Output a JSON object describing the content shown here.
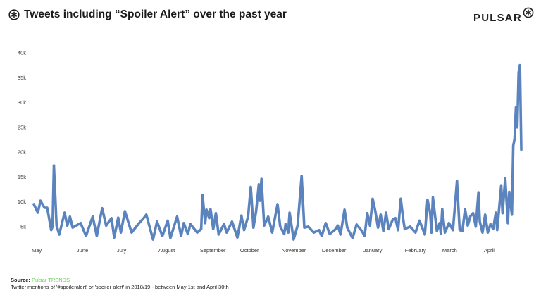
{
  "header": {
    "title": "Tweets including “Spoiler Alert” over the past year",
    "icon": "pulsar-asterisk-circle-icon"
  },
  "logo": {
    "text": "PULSAR",
    "icon": "pulsar-asterisk-circle-icon"
  },
  "footer": {
    "source_label": "Source:",
    "source_value": "Pulsar TRENDS",
    "note": "Twitter mentions of '#spoileralert' or 'spoiler alert' in 2018/19 - between May 1st and April 30th"
  },
  "colors": {
    "line": "#5b84be",
    "source": "#62d24f"
  },
  "chart_data": {
    "type": "line",
    "title": "Tweets including “Spoiler Alert” over the past year",
    "xlabel": "",
    "ylabel": "",
    "xlim": [
      "2018-05-01",
      "2019-04-30"
    ],
    "ylim": [
      0,
      40000
    ],
    "grid": false,
    "y_ticks": [
      {
        "value": 5000,
        "label": "5k"
      },
      {
        "value": 10000,
        "label": "10k"
      },
      {
        "value": 15000,
        "label": "15k"
      },
      {
        "value": 20000,
        "label": "20k"
      },
      {
        "value": 25000,
        "label": "25k"
      },
      {
        "value": 30000,
        "label": "30k"
      },
      {
        "value": 35000,
        "label": "35k"
      },
      {
        "value": 40000,
        "label": "40k"
      }
    ],
    "x_ticks": [
      {
        "date": "2018-05-01",
        "label": "May"
      },
      {
        "date": "2018-06-01",
        "label": "June"
      },
      {
        "date": "2018-07-01",
        "label": "July"
      },
      {
        "date": "2018-08-01",
        "label": "August"
      },
      {
        "date": "2018-09-01",
        "label": "September"
      },
      {
        "date": "2018-10-01",
        "label": "October"
      },
      {
        "date": "2018-11-01",
        "label": "November"
      },
      {
        "date": "2018-12-01",
        "label": "December"
      },
      {
        "date": "2019-01-01",
        "label": "January"
      },
      {
        "date": "2019-02-01",
        "label": "February"
      },
      {
        "date": "2019-03-01",
        "label": "March"
      },
      {
        "date": "2019-04-01",
        "label": "April"
      }
    ],
    "series": [
      {
        "points": [
          [
            "2018-05-01",
            9500
          ],
          [
            "2018-05-04",
            7800
          ],
          [
            "2018-05-06",
            10200
          ],
          [
            "2018-05-09",
            8800
          ],
          [
            "2018-05-11",
            8800
          ],
          [
            "2018-05-14",
            4300
          ],
          [
            "2018-05-15",
            5000
          ],
          [
            "2018-05-16",
            17300
          ],
          [
            "2018-05-18",
            5200
          ],
          [
            "2018-05-20",
            3400
          ],
          [
            "2018-05-24",
            7800
          ],
          [
            "2018-05-26",
            5200
          ],
          [
            "2018-05-28",
            7000
          ],
          [
            "2018-05-30",
            4800
          ],
          [
            "2018-06-05",
            5700
          ],
          [
            "2018-06-09",
            3100
          ],
          [
            "2018-06-14",
            7000
          ],
          [
            "2018-06-17",
            3100
          ],
          [
            "2018-06-21",
            8700
          ],
          [
            "2018-06-24",
            5200
          ],
          [
            "2018-06-28",
            6700
          ],
          [
            "2018-06-30",
            2800
          ],
          [
            "2018-07-03",
            6800
          ],
          [
            "2018-07-05",
            3800
          ],
          [
            "2018-07-08",
            8100
          ],
          [
            "2018-07-13",
            3800
          ],
          [
            "2018-07-18",
            5500
          ],
          [
            "2018-07-22",
            6700
          ],
          [
            "2018-07-24",
            7400
          ],
          [
            "2018-07-28",
            3400
          ],
          [
            "2018-07-29",
            2400
          ],
          [
            "2018-08-01",
            6000
          ],
          [
            "2018-08-05",
            3100
          ],
          [
            "2018-08-09",
            6200
          ],
          [
            "2018-08-11",
            2700
          ],
          [
            "2018-08-16",
            7000
          ],
          [
            "2018-08-19",
            3100
          ],
          [
            "2018-08-21",
            5700
          ],
          [
            "2018-08-24",
            3500
          ],
          [
            "2018-08-26",
            5500
          ],
          [
            "2018-08-31",
            3800
          ],
          [
            "2018-09-03",
            4500
          ],
          [
            "2018-09-04",
            11300
          ],
          [
            "2018-09-06",
            5700
          ],
          [
            "2018-09-07",
            8400
          ],
          [
            "2018-09-09",
            6700
          ],
          [
            "2018-09-10",
            8500
          ],
          [
            "2018-09-12",
            4500
          ],
          [
            "2018-09-14",
            7700
          ],
          [
            "2018-09-16",
            3400
          ],
          [
            "2018-09-20",
            5500
          ],
          [
            "2018-09-22",
            3800
          ],
          [
            "2018-09-26",
            6000
          ],
          [
            "2018-09-30",
            2800
          ],
          [
            "2018-10-03",
            7200
          ],
          [
            "2018-10-05",
            4300
          ],
          [
            "2018-10-08",
            7000
          ],
          [
            "2018-10-10",
            13000
          ],
          [
            "2018-10-12",
            4800
          ],
          [
            "2018-10-14",
            8100
          ],
          [
            "2018-10-16",
            13500
          ],
          [
            "2018-10-17",
            10200
          ],
          [
            "2018-10-18",
            14600
          ],
          [
            "2018-10-20",
            5200
          ],
          [
            "2018-10-23",
            7000
          ],
          [
            "2018-10-26",
            3800
          ],
          [
            "2018-10-30",
            9500
          ],
          [
            "2018-11-01",
            5000
          ],
          [
            "2018-11-04",
            3500
          ],
          [
            "2018-11-05",
            5500
          ],
          [
            "2018-11-07",
            3800
          ],
          [
            "2018-11-08",
            7800
          ],
          [
            "2018-11-11",
            2400
          ],
          [
            "2018-11-14",
            5200
          ],
          [
            "2018-11-17",
            15200
          ],
          [
            "2018-11-19",
            4800
          ],
          [
            "2018-11-22",
            5000
          ],
          [
            "2018-11-26",
            3800
          ],
          [
            "2018-11-30",
            4300
          ],
          [
            "2018-12-02",
            3100
          ],
          [
            "2018-12-05",
            5700
          ],
          [
            "2018-12-08",
            3500
          ],
          [
            "2018-12-12",
            4400
          ],
          [
            "2018-12-14",
            5200
          ],
          [
            "2018-12-16",
            3400
          ],
          [
            "2018-12-19",
            8400
          ],
          [
            "2018-12-21",
            4800
          ],
          [
            "2018-12-25",
            2700
          ],
          [
            "2018-12-28",
            5400
          ],
          [
            "2019-01-01",
            4100
          ],
          [
            "2019-01-03",
            3100
          ],
          [
            "2019-01-05",
            7700
          ],
          [
            "2019-01-07",
            5200
          ],
          [
            "2019-01-09",
            10600
          ],
          [
            "2019-01-11",
            8100
          ],
          [
            "2019-01-13",
            4800
          ],
          [
            "2019-01-15",
            7400
          ],
          [
            "2019-01-17",
            4100
          ],
          [
            "2019-01-19",
            7800
          ],
          [
            "2019-01-21",
            4500
          ],
          [
            "2019-01-24",
            6400
          ],
          [
            "2019-01-26",
            6700
          ],
          [
            "2019-01-28",
            4300
          ],
          [
            "2019-01-30",
            10600
          ],
          [
            "2019-02-01",
            6200
          ],
          [
            "2019-02-02",
            4500
          ],
          [
            "2019-02-06",
            5000
          ],
          [
            "2019-02-10",
            3800
          ],
          [
            "2019-02-13",
            6200
          ],
          [
            "2019-02-17",
            3400
          ],
          [
            "2019-02-19",
            10400
          ],
          [
            "2019-02-21",
            7700
          ],
          [
            "2019-02-22",
            3800
          ],
          [
            "2019-02-23",
            10900
          ],
          [
            "2019-02-26",
            4100
          ],
          [
            "2019-02-28",
            5700
          ],
          [
            "2019-03-01",
            3500
          ],
          [
            "2019-03-02",
            8500
          ],
          [
            "2019-03-04",
            3800
          ],
          [
            "2019-03-07",
            5700
          ],
          [
            "2019-03-10",
            4300
          ],
          [
            "2019-03-13",
            14200
          ],
          [
            "2019-03-15",
            4300
          ],
          [
            "2019-03-17",
            4100
          ],
          [
            "2019-03-19",
            8500
          ],
          [
            "2019-03-21",
            5200
          ],
          [
            "2019-03-23",
            7100
          ],
          [
            "2019-03-25",
            7700
          ],
          [
            "2019-03-27",
            5000
          ],
          [
            "2019-03-29",
            11900
          ],
          [
            "2019-03-30",
            6000
          ],
          [
            "2019-04-01",
            3800
          ],
          [
            "2019-04-03",
            7400
          ],
          [
            "2019-04-05",
            3800
          ],
          [
            "2019-04-07",
            5500
          ],
          [
            "2019-04-09",
            4500
          ],
          [
            "2019-04-11",
            7800
          ],
          [
            "2019-04-12",
            4300
          ],
          [
            "2019-04-15",
            13300
          ],
          [
            "2019-04-16",
            7700
          ],
          [
            "2019-04-18",
            14700
          ],
          [
            "2019-04-20",
            5700
          ],
          [
            "2019-04-21",
            12000
          ],
          [
            "2019-04-23",
            7400
          ],
          [
            "2019-04-24",
            21300
          ],
          [
            "2019-04-25",
            22700
          ],
          [
            "2019-04-26",
            29000
          ],
          [
            "2019-04-27",
            25000
          ],
          [
            "2019-04-28",
            36000
          ],
          [
            "2019-04-29",
            37500
          ],
          [
            "2019-04-30",
            20500
          ]
        ]
      }
    ]
  }
}
